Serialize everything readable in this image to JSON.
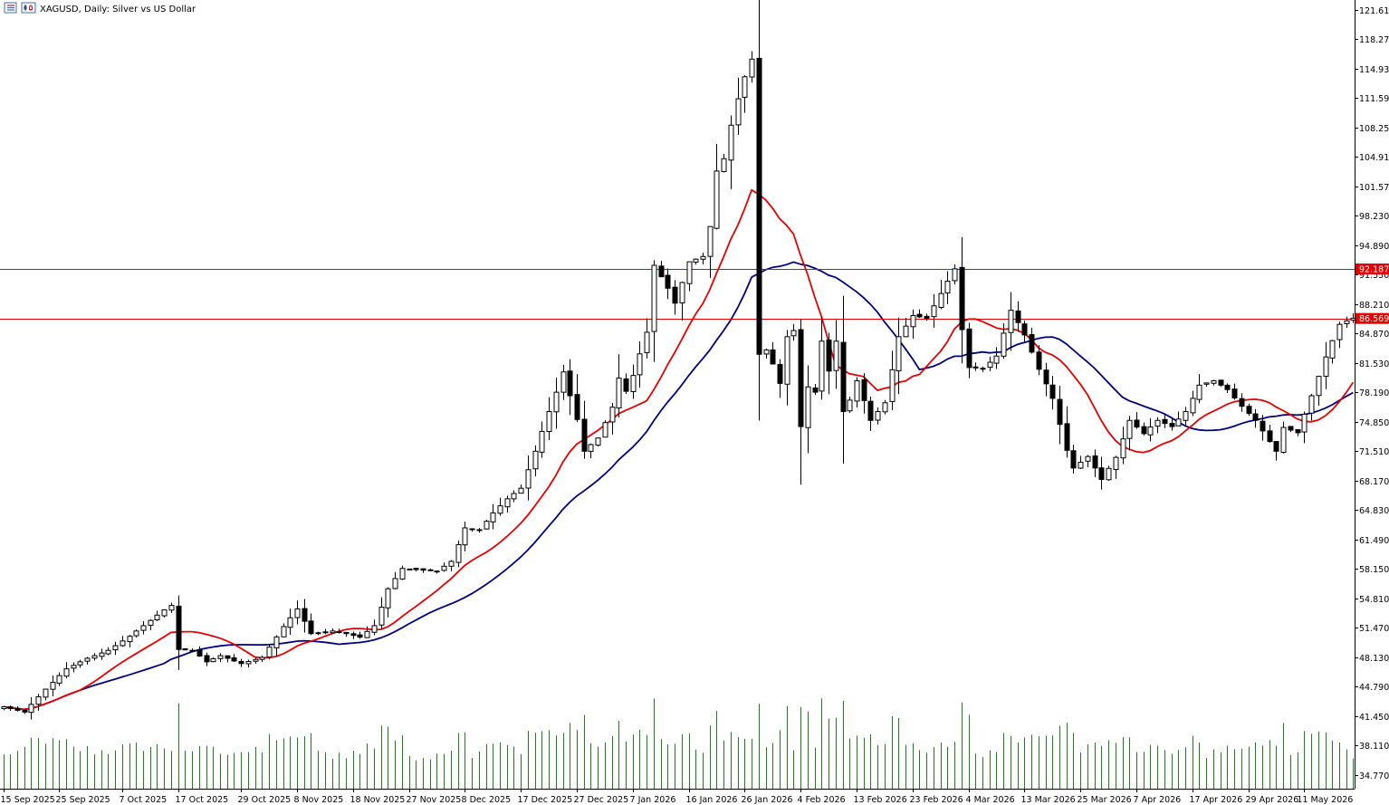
{
  "header": {
    "title": "XAGUSD, Daily:  Silver vs US Dollar",
    "icons": [
      "window-list-icon",
      "chart-type-icon"
    ]
  },
  "chart_data": {
    "type": "candlestick",
    "symbol": "XAGUSD",
    "timeframe": "Daily",
    "ylim": [
      33.2,
      122.3
    ],
    "y_ticks": [
      "121.610",
      "118.270",
      "114.930",
      "111.590",
      "108.250",
      "104.910",
      "101.570",
      "98.230",
      "94.890",
      "91.550",
      "88.210",
      "84.870",
      "81.530",
      "78.190",
      "74.850",
      "71.510",
      "68.170",
      "64.830",
      "61.490",
      "58.150",
      "54.810",
      "51.470",
      "48.130",
      "44.790",
      "41.450",
      "38.110",
      "34.770"
    ],
    "x_ticks": [
      {
        "label": "15 Sep 2025",
        "idx": 0
      },
      {
        "label": "25 Sep 2025",
        "idx": 8
      },
      {
        "label": "7 Oct 2025",
        "idx": 17
      },
      {
        "label": "17 Oct 2025",
        "idx": 25
      },
      {
        "label": "29 Oct 2025",
        "idx": 34
      },
      {
        "label": "8 Nov 2025",
        "idx": 42
      },
      {
        "label": "18 Nov 2025",
        "idx": 50
      },
      {
        "label": "27 Nov 2025",
        "idx": 58
      },
      {
        "label": "8 Dec 2025",
        "idx": 66
      },
      {
        "label": "17 Dec 2025",
        "idx": 74
      },
      {
        "label": "27 Dec 2025",
        "idx": 82
      },
      {
        "label": "7 Jan 2026",
        "idx": 90
      },
      {
        "label": "16 Jan 2026",
        "idx": 98
      },
      {
        "label": "26 Jan 2026",
        "idx": 106
      },
      {
        "label": "4 Feb 2026",
        "idx": 114
      },
      {
        "label": "13 Feb 2026",
        "idx": 122
      },
      {
        "label": "23 Feb 2026",
        "idx": 130
      },
      {
        "label": "4 Mar 2026",
        "idx": 138
      },
      {
        "label": "13 Mar 2026",
        "idx": 146
      },
      {
        "label": "25 Mar 2026",
        "idx": 154
      },
      {
        "label": "7 Apr 2026",
        "idx": 162
      },
      {
        "label": "17 Apr 2026",
        "idx": 170
      },
      {
        "label": "29 Apr 2026",
        "idx": 178
      },
      {
        "label": "11 May 2026",
        "idx": 186
      }
    ],
    "close_anchors": [
      [
        0,
        42.5
      ],
      [
        3,
        41.9
      ],
      [
        6,
        44.5
      ],
      [
        9,
        46.8
      ],
      [
        12,
        48.0
      ],
      [
        15,
        48.9
      ],
      [
        18,
        50.5
      ],
      [
        21,
        52.3
      ],
      [
        23,
        53.5
      ],
      [
        24,
        54.0
      ],
      [
        25,
        49.0
      ],
      [
        27,
        48.9
      ],
      [
        29,
        47.6
      ],
      [
        31,
        48.3
      ],
      [
        34,
        47.4
      ],
      [
        37,
        48.1
      ],
      [
        40,
        51.6
      ],
      [
        42,
        53.6
      ],
      [
        44,
        50.8
      ],
      [
        47,
        51.1
      ],
      [
        49,
        50.8
      ],
      [
        51,
        50.4
      ],
      [
        53,
        51.7
      ],
      [
        55,
        55.9
      ],
      [
        57,
        58.2
      ],
      [
        60,
        58.0
      ],
      [
        62,
        57.9
      ],
      [
        64,
        59.0
      ],
      [
        66,
        62.8
      ],
      [
        68,
        62.6
      ],
      [
        70,
        64.5
      ],
      [
        72,
        66.1
      ],
      [
        74,
        67.3
      ],
      [
        76,
        71.5
      ],
      [
        78,
        76.0
      ],
      [
        79,
        78.2
      ],
      [
        80,
        80.5
      ],
      [
        82,
        75.1
      ],
      [
        83,
        71.5
      ],
      [
        85,
        73.0
      ],
      [
        87,
        76.5
      ],
      [
        88,
        79.8
      ],
      [
        89,
        78.3
      ],
      [
        90,
        80.1
      ],
      [
        92,
        85.0
      ],
      [
        93,
        92.6
      ],
      [
        95,
        90.0
      ],
      [
        96,
        88.3
      ],
      [
        98,
        93.0
      ],
      [
        100,
        93.6
      ],
      [
        101,
        97.0
      ],
      [
        102,
        103.3
      ],
      [
        103,
        104.7
      ],
      [
        104,
        108.5
      ],
      [
        105,
        111.5
      ],
      [
        106,
        114.0
      ],
      [
        107,
        116.0
      ],
      [
        108,
        82.5
      ],
      [
        109,
        83.0
      ],
      [
        110,
        81.4
      ],
      [
        111,
        79.2
      ],
      [
        112,
        84.5
      ],
      [
        113,
        85.2
      ],
      [
        114,
        74.3
      ],
      [
        115,
        78.8
      ],
      [
        116,
        78.2
      ],
      [
        117,
        84.0
      ],
      [
        118,
        80.6
      ],
      [
        119,
        84.0
      ],
      [
        120,
        76.0
      ],
      [
        121,
        77.3
      ],
      [
        122,
        79.5
      ],
      [
        124,
        75.0
      ],
      [
        126,
        77.0
      ],
      [
        128,
        84.5
      ],
      [
        130,
        86.9
      ],
      [
        132,
        86.6
      ],
      [
        134,
        89.4
      ],
      [
        136,
        92.2
      ],
      [
        137,
        85.3
      ],
      [
        138,
        81.0
      ],
      [
        140,
        80.9
      ],
      [
        142,
        82.3
      ],
      [
        144,
        87.5
      ],
      [
        146,
        84.7
      ],
      [
        148,
        80.8
      ],
      [
        150,
        77.5
      ],
      [
        152,
        71.6
      ],
      [
        153,
        69.6
      ],
      [
        155,
        70.9
      ],
      [
        157,
        68.3
      ],
      [
        159,
        70.8
      ],
      [
        161,
        75.0
      ],
      [
        163,
        73.5
      ],
      [
        165,
        75.0
      ],
      [
        167,
        74.3
      ],
      [
        169,
        76.0
      ],
      [
        171,
        79.0
      ],
      [
        173,
        79.5
      ],
      [
        175,
        78.5
      ],
      [
        177,
        76.6
      ],
      [
        179,
        75.0
      ],
      [
        181,
        72.6
      ],
      [
        182,
        71.5
      ],
      [
        183,
        74.2
      ],
      [
        185,
        73.6
      ],
      [
        187,
        77.8
      ],
      [
        189,
        82.2
      ],
      [
        191,
        85.9
      ],
      [
        192,
        86.3
      ],
      [
        193,
        86.6
      ]
    ],
    "series": [
      {
        "name": "MA (red)",
        "color": "#e60000"
      },
      {
        "name": "MA (blue)",
        "color": "#000080"
      }
    ],
    "horizontal_levels": [
      {
        "label": "92.187",
        "value": 92.187,
        "color": "#e60000"
      },
      {
        "label": "86.569",
        "value": 86.569,
        "color": "#e60000"
      }
    ],
    "volume_color": "#1f7f1f"
  }
}
